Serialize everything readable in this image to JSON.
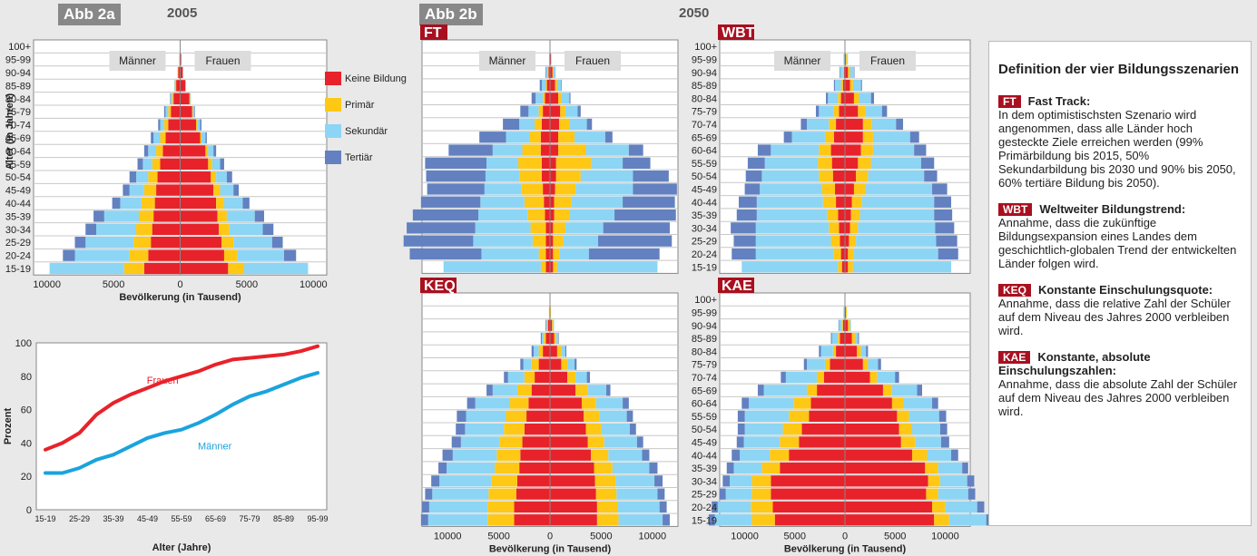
{
  "headers": {
    "abb2a": "Abb 2a",
    "year2a": "2005",
    "abb2b": "Abb 2b",
    "year2b": "2050"
  },
  "age_groups": [
    "15-19",
    "20-24",
    "25-29",
    "30-34",
    "35-39",
    "40-44",
    "45-49",
    "50-54",
    "55-59",
    "60-64",
    "65-69",
    "70-74",
    "75-79",
    "80-84",
    "85-89",
    "90-94",
    "95-99",
    "100+"
  ],
  "legend": [
    {
      "key": "keine",
      "label": "Keine Bildung",
      "color": "#e8222a"
    },
    {
      "key": "primaer",
      "label": "Primär",
      "color": "#ffc814"
    },
    {
      "key": "sekundaer",
      "label": "Sekundär",
      "color": "#8cd5f5"
    },
    {
      "key": "tertiaer",
      "label": "Tertiär",
      "color": "#6381c0"
    }
  ],
  "pyramid_labels": {
    "maenner": "Männer",
    "frauen": "Frauen",
    "xlabel": "Bevölkerung (in Tausend)",
    "ylabel": "Alter (in Jahren)"
  },
  "chart_data": [
    {
      "id": "p2005",
      "type": "bar",
      "orientation": "horizontal-pyramid",
      "title": "2005",
      "xticks": [
        "10000",
        "5000",
        "0",
        "5000",
        "10000"
      ],
      "xlim": [
        -11000,
        11000
      ],
      "segment_order": [
        "keine",
        "primaer",
        "sekundaer",
        "tertiaer"
      ],
      "male": {
        "keine": [
          2700,
          2400,
          2200,
          2100,
          2000,
          1900,
          1800,
          1700,
          1500,
          1300,
          1100,
          900,
          700,
          500,
          300,
          150,
          50,
          0
        ],
        "primaer": [
          1500,
          1400,
          1300,
          1200,
          1100,
          1000,
          900,
          700,
          600,
          500,
          400,
          300,
          200,
          100,
          100,
          50,
          0,
          0
        ],
        "sekundaer": [
          5600,
          4100,
          3600,
          3000,
          2600,
          1600,
          1100,
          900,
          700,
          600,
          500,
          300,
          200,
          100,
          50,
          0,
          0,
          0
        ],
        "tertiaer": [
          0,
          900,
          800,
          800,
          800,
          600,
          500,
          500,
          400,
          300,
          200,
          150,
          100,
          50,
          0,
          0,
          0,
          0
        ]
      },
      "female": {
        "keine": [
          3600,
          3300,
          3100,
          2900,
          2800,
          2700,
          2500,
          2300,
          2100,
          1900,
          1500,
          1200,
          900,
          700,
          400,
          200,
          80,
          0
        ],
        "primaer": [
          1200,
          1000,
          900,
          800,
          700,
          600,
          500,
          400,
          300,
          200,
          100,
          100,
          50,
          50,
          0,
          0,
          0,
          0
        ],
        "sekundaer": [
          4800,
          3500,
          2900,
          2500,
          2100,
          1400,
          1000,
          800,
          600,
          400,
          300,
          200,
          100,
          50,
          0,
          0,
          0,
          0
        ],
        "tertiaer": [
          0,
          900,
          800,
          800,
          700,
          500,
          400,
          400,
          300,
          200,
          100,
          100,
          50,
          0,
          0,
          0,
          0,
          0
        ]
      }
    },
    {
      "id": "pFT",
      "type": "bar",
      "orientation": "horizontal-pyramid",
      "title": "FT",
      "xticks": [
        "10000",
        "5000",
        "0",
        "5000",
        "10000"
      ],
      "xlim": [
        -12500,
        12500
      ],
      "segment_order": [
        "keine",
        "primaer",
        "sekundaer",
        "tertiaer"
      ],
      "male": {
        "keine": [
          400,
          400,
          400,
          400,
          500,
          600,
          700,
          800,
          800,
          900,
          900,
          800,
          700,
          500,
          300,
          150,
          50,
          0
        ],
        "primaer": [
          500,
          700,
          1300,
          1500,
          1700,
          1900,
          2100,
          2200,
          2300,
          1800,
          1100,
          700,
          400,
          200,
          100,
          50,
          0,
          0
        ],
        "sekundaer": [
          9500,
          5600,
          5800,
          5400,
          4800,
          4300,
          3600,
          3300,
          3100,
          2900,
          2300,
          1500,
          1000,
          700,
          400,
          200,
          50,
          0
        ],
        "tertiaer": [
          0,
          7000,
          6800,
          6700,
          6400,
          5800,
          5600,
          5800,
          6000,
          4300,
          2600,
          1600,
          800,
          400,
          200,
          50,
          0,
          0
        ]
      },
      "female": {
        "keine": [
          300,
          300,
          300,
          300,
          400,
          400,
          500,
          600,
          600,
          800,
          800,
          900,
          1000,
          800,
          500,
          250,
          100,
          0
        ],
        "primaer": [
          400,
          600,
          1000,
          1200,
          1500,
          1700,
          2000,
          2400,
          3400,
          2700,
          1600,
          1000,
          500,
          300,
          200,
          100,
          0,
          0
        ],
        "sekundaer": [
          9800,
          2900,
          3400,
          3700,
          4400,
          5000,
          5600,
          5100,
          3100,
          4200,
          3000,
          1700,
          1200,
          800,
          400,
          200,
          50,
          0
        ],
        "tertiaer": [
          0,
          6900,
          7200,
          6500,
          6000,
          5100,
          4300,
          3500,
          2700,
          1400,
          700,
          500,
          300,
          100,
          50,
          0,
          0,
          0
        ]
      }
    },
    {
      "id": "pWBT",
      "type": "bar",
      "orientation": "horizontal-pyramid",
      "title": "WBT",
      "xticks": [
        "10000",
        "5000",
        "0",
        "5000",
        "10000"
      ],
      "xlim": [
        -12500,
        12500
      ],
      "segment_order": [
        "keine",
        "primaer",
        "sekundaer",
        "tertiaer"
      ],
      "male": {
        "keine": [
          300,
          400,
          500,
          600,
          700,
          900,
          1000,
          1200,
          1300,
          1400,
          1100,
          900,
          600,
          400,
          200,
          100,
          50,
          0
        ],
        "primaer": [
          400,
          700,
          900,
          1000,
          1100,
          1300,
          1300,
          1400,
          1400,
          1200,
          900,
          700,
          500,
          300,
          200,
          100,
          0,
          0
        ],
        "sekundaer": [
          9600,
          7800,
          7500,
          7300,
          7000,
          6600,
          6200,
          5700,
          5300,
          4800,
          3300,
          2200,
          1500,
          1000,
          600,
          300,
          100,
          0
        ],
        "tertiaer": [
          0,
          2400,
          2200,
          2500,
          2000,
          1800,
          1500,
          1600,
          1700,
          1300,
          800,
          600,
          300,
          200,
          100,
          50,
          0,
          0
        ]
      },
      "female": {
        "keine": [
          300,
          300,
          400,
          500,
          600,
          700,
          900,
          1100,
          1300,
          1600,
          1800,
          1800,
          1300,
          900,
          500,
          300,
          100,
          0
        ],
        "primaer": [
          500,
          600,
          700,
          800,
          900,
          1000,
          1100,
          1200,
          1300,
          1200,
          1000,
          900,
          700,
          500,
          300,
          200,
          100,
          0
        ],
        "sekundaer": [
          9800,
          8400,
          8000,
          7700,
          7400,
          7200,
          6700,
          5600,
          5000,
          4100,
          3700,
          2400,
          1700,
          1200,
          800,
          400,
          100,
          0
        ],
        "tertiaer": [
          0,
          2000,
          2100,
          1900,
          1800,
          1700,
          1500,
          1300,
          1300,
          1200,
          900,
          700,
          500,
          300,
          100,
          50,
          0,
          0
        ]
      }
    },
    {
      "id": "pKEQ",
      "type": "bar",
      "orientation": "horizontal-pyramid",
      "title": "KEQ",
      "xticks": [
        "10000",
        "5000",
        "0",
        "5000",
        "10000"
      ],
      "xlim": [
        -12500,
        12500
      ],
      "segment_order": [
        "keine",
        "primaer",
        "sekundaer",
        "tertiaer"
      ],
      "male": {
        "keine": [
          3500,
          3500,
          3300,
          3200,
          3000,
          2900,
          2700,
          2500,
          2300,
          2100,
          1800,
          1500,
          1100,
          700,
          400,
          200,
          50,
          0
        ],
        "primaer": [
          2600,
          2600,
          2700,
          2500,
          2400,
          2300,
          2200,
          2000,
          2000,
          1800,
          1400,
          1000,
          700,
          400,
          200,
          100,
          50,
          0
        ],
        "sekundaer": [
          5800,
          5700,
          5500,
          5100,
          4700,
          4300,
          3800,
          3800,
          3900,
          3400,
          2400,
          1600,
          800,
          500,
          200,
          100,
          0,
          0
        ],
        "tertiaer": [
          700,
          700,
          700,
          800,
          800,
          1000,
          900,
          900,
          900,
          800,
          600,
          400,
          300,
          200,
          100,
          50,
          0,
          0
        ]
      },
      "female": {
        "keine": [
          4600,
          4600,
          4500,
          4400,
          4300,
          4000,
          3700,
          3500,
          3300,
          3100,
          2500,
          1700,
          1100,
          700,
          400,
          200,
          50,
          0
        ],
        "primaer": [
          2100,
          2000,
          2000,
          2000,
          1800,
          1700,
          1600,
          1500,
          1500,
          1400,
          1200,
          800,
          600,
          400,
          200,
          100,
          50,
          0
        ],
        "sekundaer": [
          4300,
          4100,
          4000,
          3800,
          3600,
          3300,
          3200,
          2800,
          2700,
          2600,
          1800,
          1100,
          700,
          400,
          200,
          100,
          0,
          0
        ],
        "tertiaer": [
          700,
          700,
          700,
          800,
          800,
          700,
          600,
          600,
          600,
          600,
          400,
          300,
          200,
          100,
          50,
          0,
          0,
          0
        ]
      }
    },
    {
      "id": "pKAE",
      "type": "bar",
      "orientation": "horizontal-pyramid",
      "title": "KAE",
      "xticks": [
        "10000",
        "5000",
        "0",
        "5000",
        "10000"
      ],
      "xlim": [
        -12500,
        12500
      ],
      "segment_order": [
        "keine",
        "primaer",
        "sekundaer",
        "tertiaer"
      ],
      "male": {
        "keine": [
          7000,
          7200,
          7400,
          7400,
          6500,
          5600,
          4600,
          4300,
          3600,
          3400,
          2800,
          2100,
          1500,
          900,
          500,
          200,
          50,
          0
        ],
        "primaer": [
          2300,
          2200,
          1900,
          1900,
          1800,
          1900,
          1900,
          1900,
          2000,
          1700,
          1000,
          700,
          500,
          300,
          200,
          100,
          0,
          0
        ],
        "sekundaer": [
          3700,
          3300,
          2600,
          2200,
          2800,
          3000,
          3600,
          3800,
          4400,
          4500,
          4300,
          3100,
          1800,
          1200,
          600,
          300,
          100,
          0
        ],
        "tertiaer": [
          600,
          600,
          600,
          700,
          700,
          800,
          700,
          700,
          700,
          700,
          600,
          500,
          300,
          200,
          100,
          50,
          0,
          0
        ]
      },
      "female": {
        "keine": [
          8900,
          8700,
          8100,
          8300,
          8000,
          6700,
          5600,
          5400,
          5200,
          4700,
          3800,
          2500,
          1800,
          1200,
          700,
          300,
          100,
          0
        ],
        "primaer": [
          1500,
          1300,
          1200,
          1200,
          1300,
          1500,
          1400,
          1300,
          1200,
          1100,
          900,
          700,
          500,
          400,
          300,
          200,
          100,
          0
        ],
        "sekundaer": [
          3700,
          3200,
          3000,
          2700,
          2400,
          2400,
          2600,
          2800,
          3000,
          2900,
          2500,
          1800,
          1000,
          500,
          300,
          100,
          0,
          0
        ],
        "tertiaer": [
          700,
          700,
          700,
          700,
          600,
          700,
          800,
          700,
          700,
          600,
          500,
          400,
          300,
          200,
          100,
          0,
          0,
          0
        ]
      }
    },
    {
      "id": "line",
      "type": "line",
      "title": "",
      "xlabel": "Alter (Jahre)",
      "ylabel": "Prozent",
      "categories": [
        "15-19",
        "20-24",
        "25-29",
        "30-34",
        "35-39",
        "40-44",
        "45-49",
        "50-54",
        "55-59",
        "60-64",
        "65-69",
        "70-74",
        "75-79",
        "80-84",
        "85-89",
        "90-94",
        "95-99"
      ],
      "xtick_labels": [
        "15-19",
        "25-29",
        "35-39",
        "45-49",
        "55-59",
        "65-69",
        "75-79",
        "85-89",
        "95-99"
      ],
      "ylim": [
        0,
        100
      ],
      "yticks": [
        0,
        20,
        40,
        60,
        80,
        100
      ],
      "series": [
        {
          "name": "Frauen",
          "color": "#e8222a",
          "values": [
            36,
            40,
            46,
            57,
            64,
            69,
            73,
            77,
            80,
            83,
            87,
            90,
            91,
            92,
            93,
            95,
            98
          ]
        },
        {
          "name": "Männer",
          "color": "#1aa3de",
          "values": [
            22,
            22,
            25,
            30,
            33,
            38,
            43,
            46,
            48,
            52,
            57,
            63,
            68,
            71,
            75,
            79,
            82
          ]
        }
      ]
    }
  ],
  "definitions": {
    "title": "Definition der vier Bildungsszenarien",
    "items": [
      {
        "tag": "FT",
        "name": "Fast Track:",
        "text": "In dem optimistischsten Szenario wird angenommen, dass alle Länder hoch gesteckte Ziele erreichen werden (99% Primärbildung bis 2015, 50% Sekundarbildung bis 2030 und 90% bis 2050, 60% tertiäre Bildung bis 2050)."
      },
      {
        "tag": "WBT",
        "name": "Weltweiter Bildungstrend:",
        "text": "Annahme, dass die zukünftige Bildungsexpansion eines Landes dem geschichtlich-globalen Trend der entwickelten Länder folgen wird."
      },
      {
        "tag": "KEQ",
        "name": "Konstante Einschulungsquote:",
        "text": "Annahme, dass die relative Zahl der Schüler auf dem Niveau des Jahres 2000 verbleiben wird."
      },
      {
        "tag": "KAE",
        "name": "Konstante, absolute Einschulungszahlen:",
        "text": "Annahme, dass die absolute Zahl der Schüler auf dem Niveau des Jahres 2000 verbleiben wird."
      }
    ]
  }
}
